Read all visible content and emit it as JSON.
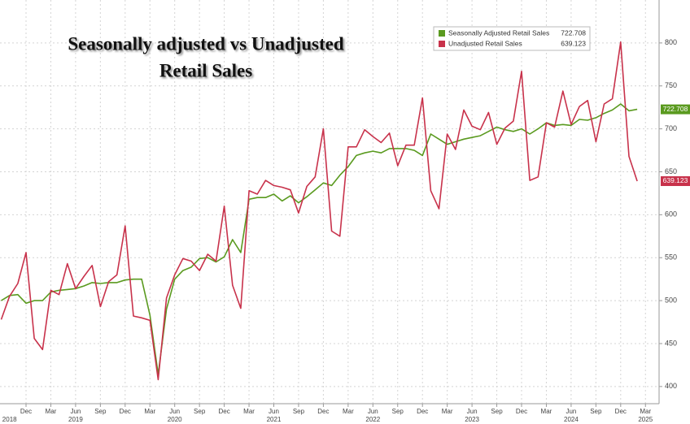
{
  "chart_data": {
    "type": "line",
    "title": [
      "Seasonally adjusted vs Unadjusted",
      "Retail Sales"
    ],
    "x": [
      "2018-09",
      "2018-10",
      "2018-11",
      "2018-12",
      "2019-01",
      "2019-02",
      "2019-03",
      "2019-04",
      "2019-05",
      "2019-06",
      "2019-07",
      "2019-08",
      "2019-09",
      "2019-10",
      "2019-11",
      "2019-12",
      "2020-01",
      "2020-02",
      "2020-03",
      "2020-04",
      "2020-05",
      "2020-06",
      "2020-07",
      "2020-08",
      "2020-09",
      "2020-10",
      "2020-11",
      "2020-12",
      "2021-01",
      "2021-02",
      "2021-03",
      "2021-04",
      "2021-05",
      "2021-06",
      "2021-07",
      "2021-08",
      "2021-09",
      "2021-10",
      "2021-11",
      "2021-12",
      "2022-01",
      "2022-02",
      "2022-03",
      "2022-04",
      "2022-05",
      "2022-06",
      "2022-07",
      "2022-08",
      "2022-09",
      "2022-10",
      "2022-11",
      "2022-12",
      "2023-01",
      "2023-02",
      "2023-03",
      "2023-04",
      "2023-05",
      "2023-06",
      "2023-07",
      "2023-08",
      "2023-09",
      "2023-10",
      "2023-11",
      "2023-12",
      "2024-01",
      "2024-02",
      "2024-03",
      "2024-04",
      "2024-05",
      "2024-06",
      "2024-07",
      "2024-08",
      "2024-09",
      "2024-10",
      "2024-11",
      "2024-12",
      "2025-01",
      "2025-02"
    ],
    "series": [
      {
        "name": "Seasonally Adjusted Retail Sales",
        "color": "#5a9a1f",
        "values": [
          500,
          506,
          507,
          497,
          500,
          500,
          510,
          512,
          513,
          514,
          517,
          521,
          520,
          521,
          521,
          524,
          525,
          525,
          483,
          414,
          490,
          525,
          535,
          539,
          549,
          550,
          545,
          551,
          571,
          556,
          618,
          620,
          620,
          624,
          616,
          622,
          614,
          621,
          629,
          637,
          634,
          646,
          656,
          669,
          672,
          674,
          672,
          677,
          677,
          677,
          675,
          669,
          694,
          688,
          682,
          685,
          688,
          690,
          692,
          697,
          702,
          699,
          697,
          700,
          694,
          700,
          707,
          704,
          705,
          704,
          711,
          710,
          713,
          718,
          722,
          729,
          721,
          722.708
        ]
      },
      {
        "name": "Unadjusted Retail Sales",
        "color": "#c8324b",
        "values": [
          478,
          505,
          520,
          556,
          456,
          443,
          512,
          507,
          543,
          514,
          528,
          541,
          493,
          522,
          530,
          587,
          482,
          480,
          477,
          408,
          503,
          530,
          549,
          546,
          535,
          554,
          546,
          610,
          518,
          491,
          628,
          624,
          640,
          634,
          632,
          629,
          602,
          633,
          644,
          700,
          581,
          575,
          679,
          679,
          699,
          691,
          684,
          695,
          657,
          681,
          681,
          736,
          628,
          607,
          694,
          676,
          722,
          703,
          699,
          719,
          682,
          701,
          709,
          767,
          640,
          644,
          707,
          702,
          744,
          705,
          726,
          733,
          685,
          729,
          735,
          801,
          668,
          639.123
        ]
      }
    ],
    "ylim": [
      380,
      850
    ],
    "yticks": [
      400,
      450,
      500,
      550,
      600,
      650,
      700,
      750,
      800
    ],
    "xticks": [
      {
        "value": "2018-12",
        "label": "Dec"
      },
      {
        "value": "2019-03",
        "label": "Mar"
      },
      {
        "value": "2019-06",
        "label": "Jun"
      },
      {
        "value": "2019-09",
        "label": "Sep"
      },
      {
        "value": "2019-12",
        "label": "Dec"
      },
      {
        "value": "2020-03",
        "label": "Mar"
      },
      {
        "value": "2020-06",
        "label": "Jun"
      },
      {
        "value": "2020-09",
        "label": "Sep"
      },
      {
        "value": "2020-12",
        "label": "Dec"
      },
      {
        "value": "2021-03",
        "label": "Mar"
      },
      {
        "value": "2021-06",
        "label": "Jun"
      },
      {
        "value": "2021-09",
        "label": "Sep"
      },
      {
        "value": "2021-12",
        "label": "Dec"
      },
      {
        "value": "2022-03",
        "label": "Mar"
      },
      {
        "value": "2022-06",
        "label": "Jun"
      },
      {
        "value": "2022-09",
        "label": "Sep"
      },
      {
        "value": "2022-12",
        "label": "Dec"
      },
      {
        "value": "2023-03",
        "label": "Mar"
      },
      {
        "value": "2023-06",
        "label": "Jun"
      },
      {
        "value": "2023-09",
        "label": "Sep"
      },
      {
        "value": "2023-12",
        "label": "Dec"
      },
      {
        "value": "2024-03",
        "label": "Mar"
      },
      {
        "value": "2024-06",
        "label": "Jun"
      },
      {
        "value": "2024-09",
        "label": "Sep"
      },
      {
        "value": "2024-12",
        "label": "Dec"
      },
      {
        "value": "2025-03",
        "label": "Mar"
      }
    ],
    "year_labels": [
      {
        "value": "2018-10",
        "label": "2018"
      },
      {
        "value": "2019-06",
        "label": "2019"
      },
      {
        "value": "2020-06",
        "label": "2020"
      },
      {
        "value": "2021-06",
        "label": "2021"
      },
      {
        "value": "2022-06",
        "label": "2022"
      },
      {
        "value": "2023-06",
        "label": "2023"
      },
      {
        "value": "2024-06",
        "label": "2024"
      },
      {
        "value": "2025-03",
        "label": "2025"
      }
    ],
    "grid": true,
    "legend": "top-right"
  }
}
